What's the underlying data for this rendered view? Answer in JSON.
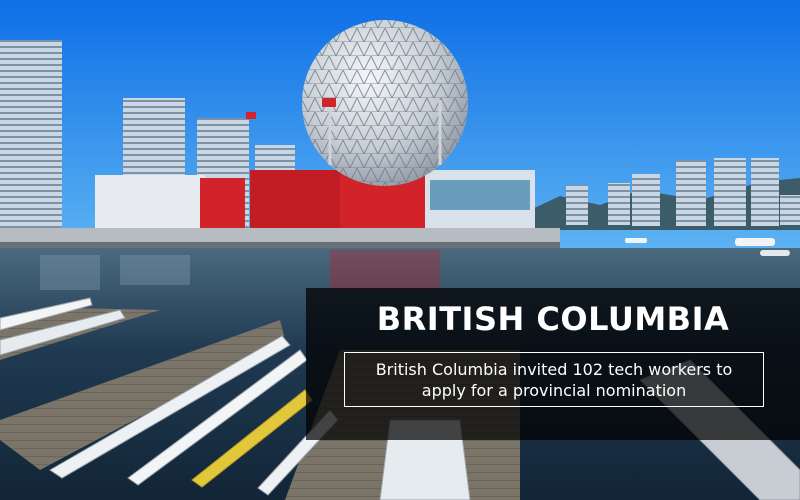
{
  "overlay": {
    "headline": "BRITISH COLUMBIA",
    "caption_line1": "British Columbia invited 102 tech workers to",
    "caption_line2": "apply for a provincial nomination"
  },
  "colors": {
    "sky": "#1f7fe0",
    "water": "#1d3b52",
    "panel": "#000000",
    "text": "#ffffff",
    "accent_red": "#d2232a"
  }
}
